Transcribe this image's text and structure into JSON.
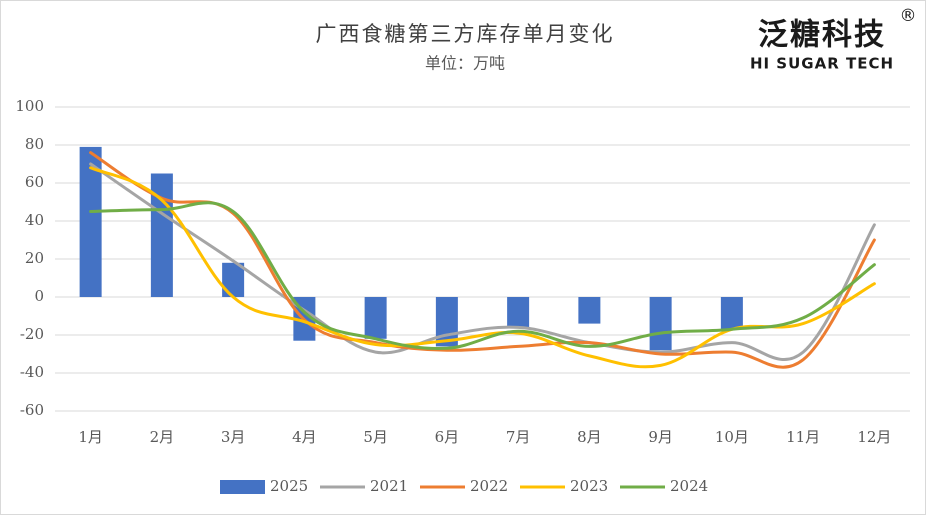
{
  "chart_data": {
    "type": "bar-line",
    "title": "广西食糖第三方库存单月变化",
    "subtitle": "单位：万吨",
    "brand": {
      "name": "泛糖科技",
      "mark": "®",
      "english": "HI SUGAR TECH"
    },
    "categories": [
      "1月",
      "2月",
      "3月",
      "4月",
      "5月",
      "6月",
      "7月",
      "8月",
      "9月",
      "10月",
      "11月",
      "12月"
    ],
    "series": [
      {
        "name": "2025",
        "kind": "bar",
        "color": "#4472c4",
        "values": [
          79,
          65,
          18,
          -23,
          -22,
          -26,
          -16,
          -14,
          -28,
          -17,
          null,
          null
        ]
      },
      {
        "name": "2021",
        "kind": "line",
        "color": "#a5a5a5",
        "values": [
          70,
          44,
          19,
          -7,
          -29,
          -20,
          -16,
          -24,
          -29,
          -24,
          -29,
          38
        ]
      },
      {
        "name": "2022",
        "kind": "line",
        "color": "#ed7d31",
        "values": [
          76,
          52,
          44,
          -12,
          -24,
          -28,
          -26,
          -24,
          -30,
          -29,
          -33,
          30
        ]
      },
      {
        "name": "2023",
        "kind": "line",
        "color": "#ffc000",
        "values": [
          68,
          51,
          0,
          -13,
          -25,
          -23,
          -19,
          -31,
          -36,
          -17,
          -14,
          7
        ]
      },
      {
        "name": "2024",
        "kind": "line",
        "color": "#70ad47",
        "values": [
          45,
          46,
          45,
          -8,
          -22,
          -27,
          -18,
          -26,
          -19,
          -17,
          -11,
          17
        ]
      }
    ],
    "ylim": [
      -60,
      100
    ],
    "yticks": [
      -60,
      -40,
      -20,
      0,
      20,
      40,
      60,
      80,
      100
    ],
    "grid": true,
    "legend": "bottom"
  }
}
